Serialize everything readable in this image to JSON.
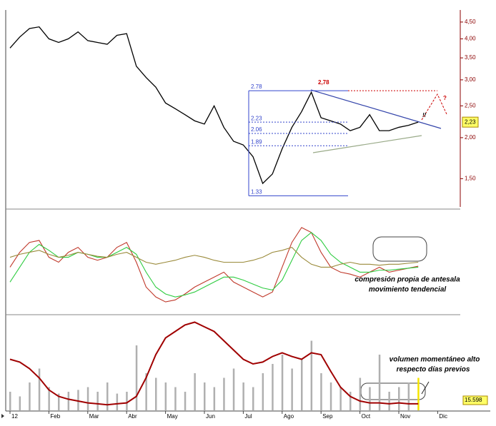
{
  "chart_data": [
    {
      "type": "line",
      "log_scale": true,
      "ylim": [
        1.23,
        4.8
      ],
      "yticks": [
        {
          "value": 4.5,
          "label": "4,50"
        },
        {
          "value": 4,
          "label": "4,00"
        },
        {
          "value": 3.5,
          "label": "3,50"
        },
        {
          "value": 3,
          "label": "3,00"
        },
        {
          "value": 2.5,
          "label": "2,50"
        },
        {
          "value": 2,
          "label": "2,00"
        },
        {
          "value": 1.5,
          "label": "1,50"
        }
      ],
      "series": [
        {
          "color": "#000000",
          "values": [
            3.75,
            4.05,
            4.3,
            4.35,
            4.0,
            3.9,
            4.0,
            4.2,
            3.95,
            3.9,
            3.85,
            4.1,
            4.15,
            3.3,
            3.05,
            2.85,
            2.55,
            2.45,
            2.35,
            2.25,
            2.2,
            2.5,
            2.15,
            1.95,
            1.9,
            1.75,
            1.45,
            1.55,
            1.85,
            2.15,
            2.4,
            2.75,
            2.3,
            2.25,
            2.2,
            2.1,
            2.15,
            2.35,
            2.1,
            2.1,
            2.15,
            2.18,
            2.23,
            null,
            null
          ]
        }
      ],
      "levels": [
        {
          "value": 2.78,
          "label": "2.78"
        },
        {
          "value": 2.23,
          "label": "2.23"
        },
        {
          "value": 2.06,
          "label": "2.06"
        },
        {
          "value": 1.89,
          "label": "1.89"
        },
        {
          "value": 1.33,
          "label": "1.33"
        }
      ],
      "peak_label": {
        "value": 2.78,
        "label": "2,78"
      },
      "last_value": {
        "value": 2.23,
        "label": "2,23"
      },
      "annotations": [
        "?",
        "!!"
      ]
    },
    {
      "type": "line",
      "ylim": [
        0,
        100
      ],
      "series": [
        {
          "color": "#c0392b",
          "values": [
            45,
            60,
            70,
            72,
            55,
            50,
            60,
            65,
            55,
            52,
            55,
            65,
            70,
            50,
            25,
            15,
            10,
            12,
            18,
            25,
            30,
            35,
            40,
            30,
            25,
            20,
            15,
            20,
            45,
            70,
            85,
            80,
            60,
            45,
            40,
            38,
            35,
            40,
            45,
            40,
            42,
            44,
            46,
            null,
            null
          ]
        },
        {
          "color": "#2ecc40",
          "values": [
            30,
            45,
            60,
            68,
            62,
            55,
            55,
            60,
            58,
            55,
            55,
            60,
            65,
            58,
            40,
            25,
            18,
            15,
            17,
            20,
            25,
            30,
            35,
            35,
            32,
            28,
            24,
            22,
            32,
            52,
            72,
            80,
            72,
            58,
            50,
            45,
            40,
            40,
            42,
            42,
            43,
            44,
            45,
            null,
            null
          ]
        },
        {
          "color": "#9a8a3a",
          "values": [
            55,
            58,
            60,
            62,
            58,
            55,
            57,
            60,
            58,
            56,
            55,
            58,
            60,
            55,
            50,
            48,
            50,
            52,
            55,
            57,
            55,
            52,
            50,
            50,
            50,
            52,
            55,
            60,
            62,
            65,
            55,
            48,
            45,
            45,
            48,
            50,
            48,
            48,
            47,
            48,
            48,
            49,
            50,
            null,
            null
          ]
        }
      ],
      "annotation": [
        "compresión propia de antesala",
        "movimiento tendencial"
      ]
    },
    {
      "type": "volume",
      "ylim": [
        0,
        100
      ],
      "categories": [
        "12",
        null,
        null,
        null,
        "Feb",
        null,
        null,
        null,
        "Mar",
        null,
        null,
        null,
        "Abr",
        null,
        null,
        null,
        "May",
        null,
        null,
        null,
        "Jun",
        null,
        null,
        null,
        "Jul",
        null,
        null,
        null,
        "Ago",
        null,
        null,
        null,
        "Sep",
        null,
        null,
        null,
        "Oct",
        null,
        null,
        null,
        "Nov",
        null,
        null,
        null,
        "Dic"
      ],
      "series": [
        {
          "color": "#b0b0b0",
          "values": [
            20,
            15,
            30,
            45,
            25,
            18,
            20,
            22,
            25,
            20,
            30,
            18,
            20,
            70,
            40,
            35,
            30,
            25,
            20,
            40,
            30,
            25,
            35,
            45,
            30,
            25,
            40,
            50,
            60,
            45,
            55,
            75,
            40,
            30,
            25,
            20,
            35,
            25,
            60,
            20,
            25,
            30,
            35,
            null,
            null
          ]
        },
        {
          "color": "#a00000",
          "values": [
            55,
            52,
            45,
            35,
            22,
            15,
            12,
            10,
            8,
            7,
            6,
            7,
            8,
            15,
            35,
            60,
            78,
            85,
            92,
            95,
            90,
            85,
            75,
            65,
            55,
            50,
            52,
            58,
            62,
            58,
            55,
            62,
            60,
            42,
            25,
            15,
            10,
            8,
            8,
            7,
            8,
            7,
            7,
            null,
            null
          ]
        }
      ],
      "highlight_color": "#f5e400",
      "last_value_label": "15.598",
      "annotation": [
        "volumen momentáneo alto",
        "respecto días previos"
      ]
    }
  ]
}
